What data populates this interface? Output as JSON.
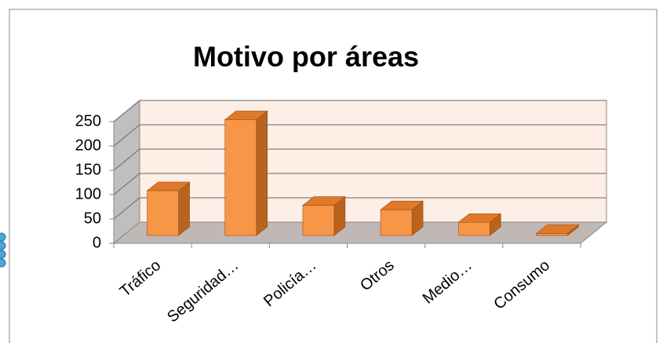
{
  "chart_data": {
    "type": "bar3d",
    "title": "Motivo por áreas",
    "categories": [
      "Tráfico",
      "Seguridad…",
      "Policía…",
      "Otros",
      "Medio…",
      "Consumo"
    ],
    "values": [
      92,
      238,
      62,
      53,
      27,
      4
    ],
    "color": "#f79646",
    "ylim": [
      0,
      250
    ],
    "yticks": [
      0,
      50,
      100,
      150,
      200,
      250
    ],
    "grid": true
  }
}
